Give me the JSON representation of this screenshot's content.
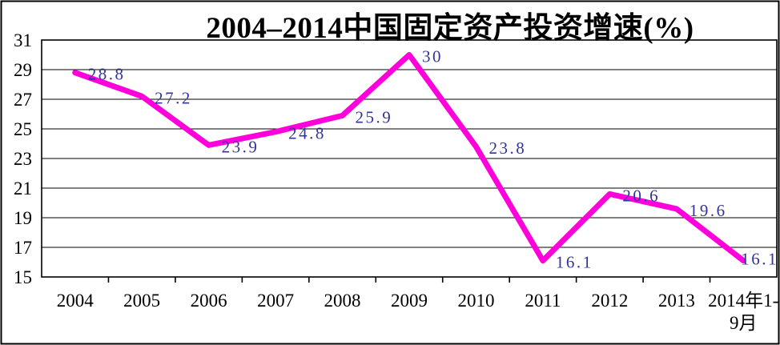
{
  "title": "2004–2014中国固定资产投资增速(%)",
  "colors": {
    "line": "#FF00DC",
    "data_label": "#333399",
    "axis": "#000000",
    "background": "#FFFFFF"
  },
  "chart_data": {
    "type": "line",
    "title": "2004–2014中国固定资产投资增速(%)",
    "categories": [
      "2004",
      "2005",
      "2006",
      "2007",
      "2008",
      "2009",
      "2010",
      "2011",
      "2012",
      "2013",
      "2014年1-9月"
    ],
    "values": [
      28.8,
      27.2,
      23.9,
      24.8,
      25.9,
      30,
      23.8,
      16.1,
      20.6,
      19.6,
      16.1
    ],
    "data_labels": [
      "28.8",
      "27.2",
      "23.9",
      "24.8",
      "25.9",
      "30",
      "23.8",
      "16.1",
      "20.6",
      "19.6",
      "16.1"
    ],
    "xlabel": "",
    "ylabel": "",
    "ylim": [
      15,
      31
    ],
    "yticks": [
      15,
      17,
      19,
      21,
      23,
      25,
      27,
      29,
      31
    ],
    "grid": true,
    "legend": "none",
    "last_category_wrap": [
      "2014年1-",
      "9月"
    ]
  }
}
